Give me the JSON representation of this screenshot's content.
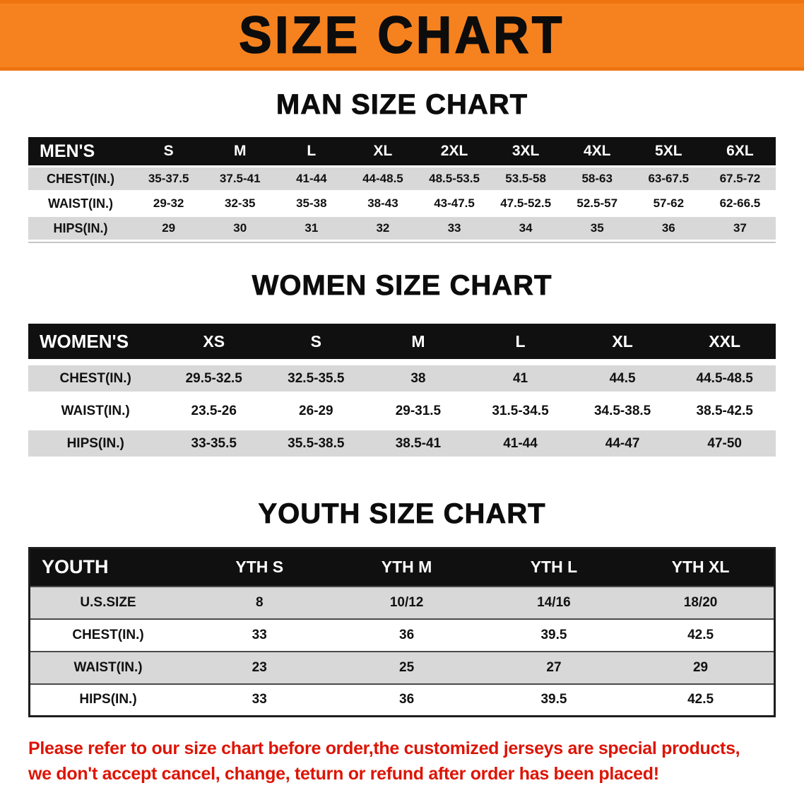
{
  "banner": {
    "title": "SIZE CHART"
  },
  "colors": {
    "banner_bg": "#f6821f",
    "table_header_bg": "#101010",
    "table_header_text": "#ffffff",
    "row_gray": "#d8d8d8",
    "disclaimer_red": "#dd1405"
  },
  "sections": [
    {
      "heading": "MAN SIZE CHART",
      "table": {
        "header": [
          "MEN'S",
          "S",
          "M",
          "L",
          "XL",
          "2XL",
          "3XL",
          "4XL",
          "5XL",
          "6XL"
        ],
        "rows": [
          [
            "CHEST(IN.)",
            "35-37.5",
            "37.5-41",
            "41-44",
            "44-48.5",
            "48.5-53.5",
            "53.5-58",
            "58-63",
            "63-67.5",
            "67.5-72"
          ],
          [
            "WAIST(IN.)",
            "29-32",
            "32-35",
            "35-38",
            "38-43",
            "43-47.5",
            "47.5-52.5",
            "52.5-57",
            "57-62",
            "62-66.5"
          ],
          [
            "HIPS(IN.)",
            "29",
            "30",
            "31",
            "32",
            "33",
            "34",
            "35",
            "36",
            "37"
          ]
        ]
      }
    },
    {
      "heading": "WOMEN SIZE CHART",
      "table": {
        "header": [
          "WOMEN'S",
          "XS",
          "S",
          "M",
          "L",
          "XL",
          "XXL"
        ],
        "rows": [
          [
            "CHEST(IN.)",
            "29.5-32.5",
            "32.5-35.5",
            "38",
            "41",
            "44.5",
            "44.5-48.5"
          ],
          [
            "WAIST(IN.)",
            "23.5-26",
            "26-29",
            "29-31.5",
            "31.5-34.5",
            "34.5-38.5",
            "38.5-42.5"
          ],
          [
            "HIPS(IN.)",
            "33-35.5",
            "35.5-38.5",
            "38.5-41",
            "41-44",
            "44-47",
            "47-50"
          ]
        ]
      }
    },
    {
      "heading": "YOUTH SIZE CHART",
      "table": {
        "header": [
          "YOUTH",
          "YTH S",
          "YTH M",
          "YTH L",
          "YTH XL"
        ],
        "rows": [
          [
            "U.S.SIZE",
            "8",
            "10/12",
            "14/16",
            "18/20"
          ],
          [
            "CHEST(IN.)",
            "33",
            "36",
            "39.5",
            "42.5"
          ],
          [
            "WAIST(IN.)",
            "23",
            "25",
            "27",
            "29"
          ],
          [
            "HIPS(IN.)",
            "33",
            "36",
            "39.5",
            "42.5"
          ]
        ]
      }
    }
  ],
  "disclaimer": {
    "line1": "Please refer to our size chart before order,the customized jerseys are special products,",
    "line2": "we don't accept cancel, change, teturn or refund after order has been placed!"
  }
}
